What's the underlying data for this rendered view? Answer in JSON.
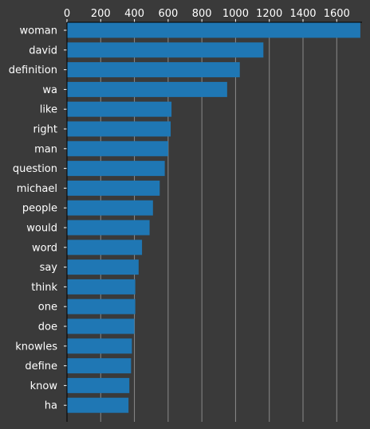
{
  "chart_data": {
    "type": "bar",
    "orientation": "horizontal",
    "categories": [
      "woman",
      "david",
      "definition",
      "wa",
      "like",
      "right",
      "man",
      "question",
      "michael",
      "people",
      "would",
      "word",
      "say",
      "think",
      "one",
      "doe",
      "knowles",
      "define",
      "know",
      "ha"
    ],
    "values": [
      1740,
      1165,
      1025,
      950,
      620,
      615,
      600,
      580,
      550,
      510,
      490,
      445,
      425,
      405,
      405,
      400,
      385,
      380,
      370,
      365
    ],
    "xlim": [
      0,
      1750
    ],
    "x_ticks": [
      "0",
      "200",
      "400",
      "600",
      "800",
      "1000",
      "1200",
      "1400",
      "1600"
    ],
    "x_axis_position": "top",
    "grid": "vertical",
    "colors": {
      "background": "#3a3a3a",
      "bar": "#1f77b4",
      "text": "#ffffff",
      "grid": "#8a8a8a",
      "axis": "#000000"
    }
  }
}
